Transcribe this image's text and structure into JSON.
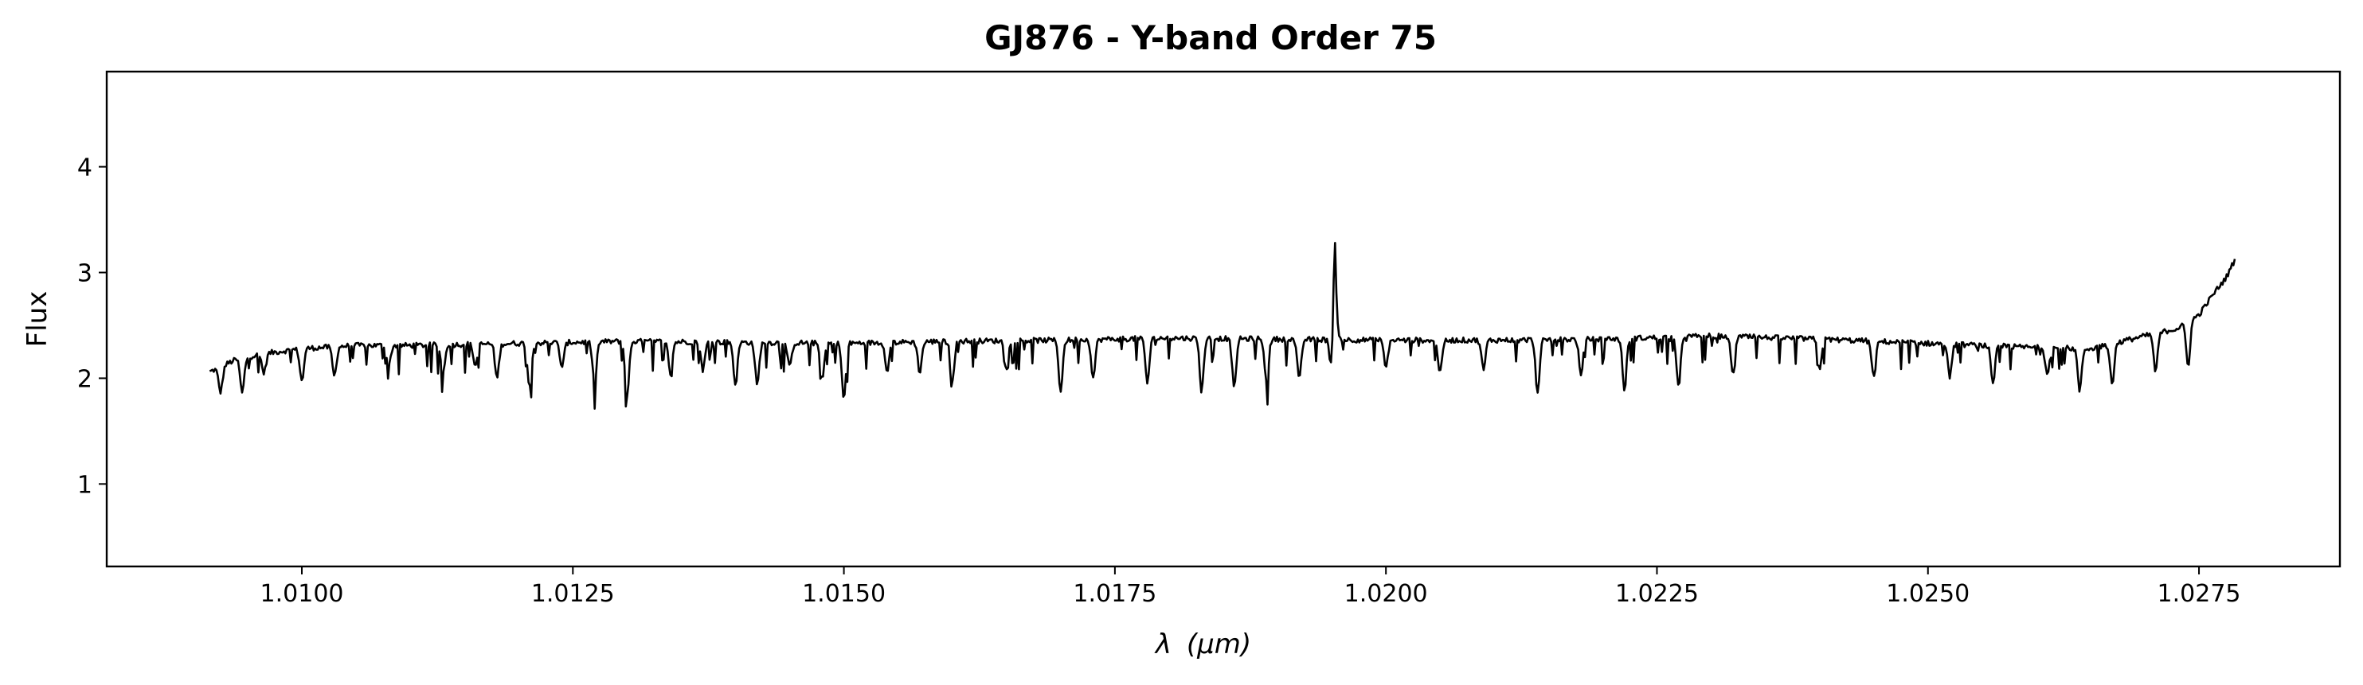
{
  "chart_data": {
    "type": "line",
    "title": "GJ876 - Y-band Order 75",
    "xlabel_symbol": "λ",
    "xlabel_unit": "(μm)",
    "ylabel": "Flux",
    "xlim": [
      1.0082,
      1.0288
    ],
    "ylim": [
      0.22,
      4.9
    ],
    "xticks": [
      "1.0100",
      "1.0125",
      "1.0150",
      "1.0175",
      "1.0200",
      "1.0225",
      "1.0250",
      "1.0275"
    ],
    "yticks": [
      "1",
      "2",
      "3",
      "4"
    ],
    "grid": false,
    "legend": "none",
    "line_color": "#000000",
    "series": [
      {
        "x_start": 1.00915,
        "x_end": 1.02783,
        "baseline": [
          [
            1.00915,
            2.06
          ],
          [
            1.0094,
            2.18
          ],
          [
            1.0097,
            2.24
          ],
          [
            1.01,
            2.28
          ],
          [
            1.0105,
            2.31
          ],
          [
            1.011,
            2.31
          ],
          [
            1.0115,
            2.32
          ],
          [
            1.012,
            2.33
          ],
          [
            1.0125,
            2.34
          ],
          [
            1.013,
            2.35
          ],
          [
            1.014,
            2.34
          ],
          [
            1.015,
            2.33
          ],
          [
            1.016,
            2.35
          ],
          [
            1.017,
            2.36
          ],
          [
            1.018,
            2.38
          ],
          [
            1.019,
            2.37
          ],
          [
            1.02,
            2.36
          ],
          [
            1.021,
            2.36
          ],
          [
            1.022,
            2.37
          ],
          [
            1.023,
            2.4
          ],
          [
            1.024,
            2.37
          ],
          [
            1.025,
            2.33
          ],
          [
            1.026,
            2.29
          ],
          [
            1.0265,
            2.28
          ],
          [
            1.027,
            2.4
          ],
          [
            1.0273,
            2.47
          ],
          [
            1.0275,
            2.6
          ],
          [
            1.02765,
            2.82
          ],
          [
            1.02775,
            2.95
          ],
          [
            1.02783,
            3.12
          ]
        ],
        "emission_lines": [
          {
            "x": 1.01953,
            "peak": 3.35
          }
        ],
        "absorption_lines": [
          [
            1.00925,
            1.87
          ],
          [
            1.00945,
            1.86
          ],
          [
            1.00965,
            2.05
          ],
          [
            1.01,
            1.97
          ],
          [
            1.0103,
            2.02
          ],
          [
            1.0108,
            2.11
          ],
          [
            1.0113,
            2.05
          ],
          [
            1.0116,
            2.12
          ],
          [
            1.0118,
            2.0
          ],
          [
            1.0121,
            1.92
          ],
          [
            1.0124,
            2.1
          ],
          [
            1.0127,
            1.95
          ],
          [
            1.013,
            1.81
          ],
          [
            1.0134,
            2.05
          ],
          [
            1.0137,
            2.08
          ],
          [
            1.014,
            1.94
          ],
          [
            1.0142,
            1.93
          ],
          [
            1.0145,
            2.1
          ],
          [
            1.0148,
            1.98
          ],
          [
            1.015,
            1.8
          ],
          [
            1.0154,
            2.08
          ],
          [
            1.0157,
            2.06
          ],
          [
            1.016,
            1.98
          ],
          [
            1.0165,
            2.1
          ],
          [
            1.017,
            1.88
          ],
          [
            1.0173,
            2.0
          ],
          [
            1.0178,
            1.96
          ],
          [
            1.0183,
            1.88
          ],
          [
            1.0186,
            1.9
          ],
          [
            1.0189,
            1.95
          ],
          [
            1.0192,
            1.98
          ],
          [
            1.0195,
            2.06
          ],
          [
            1.02,
            2.1
          ],
          [
            1.0205,
            2.05
          ],
          [
            1.0209,
            2.08
          ],
          [
            1.0214,
            1.85
          ],
          [
            1.0218,
            2.02
          ],
          [
            1.0222,
            1.89
          ],
          [
            1.0227,
            1.93
          ],
          [
            1.0232,
            2.03
          ],
          [
            1.024,
            2.1
          ],
          [
            1.0245,
            2.0
          ],
          [
            1.0252,
            2.02
          ],
          [
            1.0256,
            1.93
          ],
          [
            1.0261,
            2.05
          ],
          [
            1.0264,
            1.88
          ],
          [
            1.0267,
            1.95
          ],
          [
            1.0271,
            2.06
          ],
          [
            1.0274,
            2.12
          ]
        ]
      }
    ]
  }
}
